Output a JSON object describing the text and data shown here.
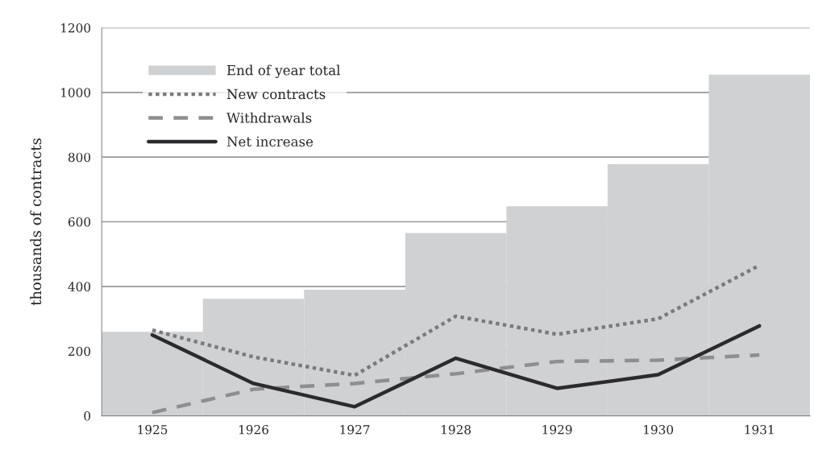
{
  "chart_data": {
    "type": "bar",
    "ylabel": "thousands of contracts",
    "categories": [
      "1925",
      "1926",
      "1927",
      "1928",
      "1929",
      "1930",
      "1931"
    ],
    "series": [
      {
        "name": "End of year total",
        "color": "#d0d1d3",
        "values": [
          260,
          362,
          390,
          565,
          648,
          778,
          1055
        ]
      },
      {
        "name": "New contracts",
        "type": "line",
        "color": "#7a7a7c",
        "line_style": "dotted",
        "values": [
          265,
          182,
          125,
          308,
          252,
          300,
          465
        ]
      },
      {
        "name": "Withdrawals",
        "type": "line",
        "color": "#8e8e90",
        "line_style": "dashed",
        "values": [
          10,
          82,
          100,
          130,
          168,
          172,
          188
        ]
      },
      {
        "name": "Net increase",
        "type": "line",
        "color": "#2b2b2d",
        "line_style": "solid",
        "values": [
          250,
          100,
          28,
          178,
          85,
          127,
          278
        ]
      }
    ],
    "ylim": [
      0,
      1200
    ],
    "yticks": [
      0,
      200,
      400,
      600,
      800,
      1000,
      1200
    ],
    "grid": "y",
    "legend": "top left"
  }
}
